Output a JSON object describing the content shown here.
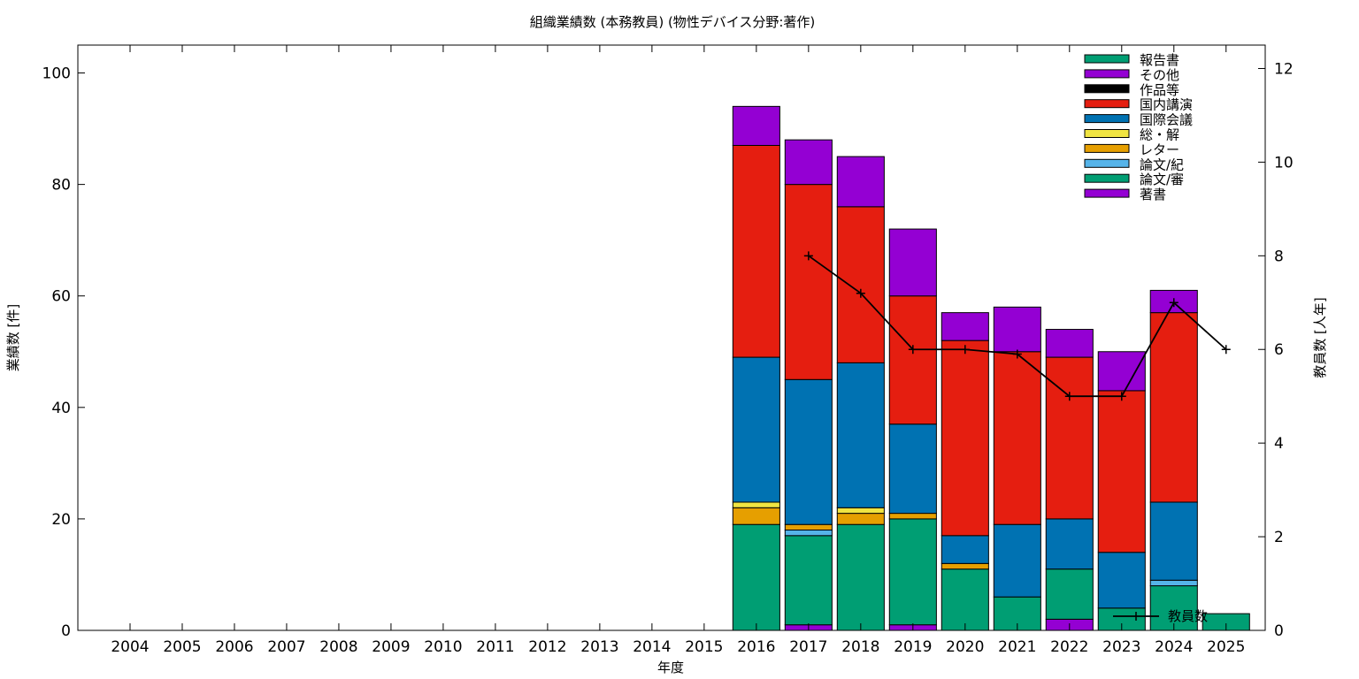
{
  "chart_data": {
    "type": "bar",
    "title": "組織業績数 (本務教員) (物性デバイス分野:著作)",
    "xlabel": "年度",
    "ylabel": "業績数 [件]",
    "y2label": "教員数 [人年]",
    "ylim": [
      0,
      105
    ],
    "y2lim": [
      0,
      12.5
    ],
    "yticks": [
      0,
      20,
      40,
      60,
      80,
      100
    ],
    "y2ticks": [
      0,
      2,
      4,
      6,
      8,
      10,
      12
    ],
    "grid": false,
    "legend_position": "top-right",
    "stacked": true,
    "categories": [
      "2004",
      "2005",
      "2006",
      "2007",
      "2008",
      "2009",
      "2010",
      "2011",
      "2012",
      "2013",
      "2014",
      "2015",
      "2016",
      "2017",
      "2018",
      "2019",
      "2020",
      "2021",
      "2022",
      "2023",
      "2024",
      "2025"
    ],
    "series": [
      {
        "name": "著書",
        "color": "#9400d3",
        "values": [
          0,
          0,
          0,
          0,
          0,
          0,
          0,
          0,
          0,
          0,
          0,
          0,
          0,
          1,
          0,
          1,
          0,
          0,
          2,
          0,
          0,
          0
        ]
      },
      {
        "name": "論文/審",
        "color": "#009e73",
        "values": [
          0,
          0,
          0,
          0,
          0,
          0,
          0,
          0,
          0,
          0,
          0,
          0,
          19,
          16,
          19,
          19,
          11,
          6,
          9,
          4,
          8,
          3
        ]
      },
      {
        "name": "論文/紀",
        "color": "#56b4e9",
        "values": [
          0,
          0,
          0,
          0,
          0,
          0,
          0,
          0,
          0,
          0,
          0,
          0,
          0,
          1,
          0,
          0,
          0,
          0,
          0,
          0,
          1,
          0
        ]
      },
      {
        "name": "レター",
        "color": "#e69f00",
        "values": [
          0,
          0,
          0,
          0,
          0,
          0,
          0,
          0,
          0,
          0,
          0,
          0,
          3,
          1,
          2,
          1,
          1,
          0,
          0,
          0,
          0,
          0
        ]
      },
      {
        "name": "総・解",
        "color": "#f0e442",
        "values": [
          0,
          0,
          0,
          0,
          0,
          0,
          0,
          0,
          0,
          0,
          0,
          0,
          1,
          0,
          1,
          0,
          0,
          0,
          0,
          0,
          0,
          0
        ]
      },
      {
        "name": "国際会議",
        "color": "#0072b2",
        "values": [
          0,
          0,
          0,
          0,
          0,
          0,
          0,
          0,
          0,
          0,
          0,
          0,
          26,
          26,
          26,
          16,
          5,
          13,
          9,
          10,
          14,
          0
        ]
      },
      {
        "name": "国内講演",
        "color": "#e51e10",
        "values": [
          0,
          0,
          0,
          0,
          0,
          0,
          0,
          0,
          0,
          0,
          0,
          0,
          38,
          35,
          28,
          23,
          35,
          31,
          29,
          29,
          34,
          0
        ]
      },
      {
        "name": "作品等",
        "color": "#000000",
        "values": [
          0,
          0,
          0,
          0,
          0,
          0,
          0,
          0,
          0,
          0,
          0,
          0,
          0,
          0,
          0,
          0,
          0,
          0,
          0,
          0,
          0,
          0
        ]
      },
      {
        "name": "その他",
        "color": "#9400d3",
        "values": [
          0,
          0,
          0,
          0,
          0,
          0,
          0,
          0,
          0,
          0,
          0,
          0,
          7,
          8,
          9,
          12,
          5,
          8,
          5,
          7,
          4,
          0
        ]
      },
      {
        "name": "報告書",
        "color": "#009e73",
        "values": [
          0,
          0,
          0,
          0,
          0,
          0,
          0,
          0,
          0,
          0,
          0,
          0,
          0,
          0,
          0,
          0,
          0,
          0,
          0,
          0,
          0,
          0
        ]
      }
    ],
    "line_series": {
      "name": "教員数",
      "axis": "y2",
      "color": "#000000",
      "x": [
        "2017",
        "2018",
        "2019",
        "2020",
        "2021",
        "2022",
        "2023",
        "2024",
        "2025"
      ],
      "values": [
        8,
        7.2,
        6,
        6,
        5.9,
        5,
        5,
        7,
        6
      ]
    }
  }
}
